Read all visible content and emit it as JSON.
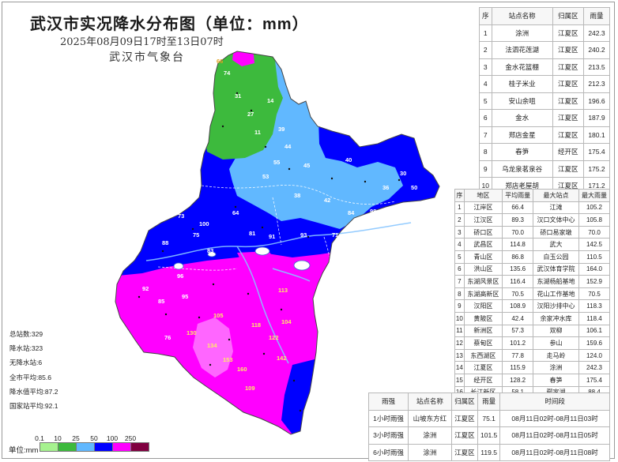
{
  "title": "武汉市实况降水分布图（单位：mm）",
  "subtitle": "2025年08月09日17时至13日07时",
  "agency": "武汉市气象台",
  "colors": {
    "c0_1": "#a6f28f",
    "c10": "#3dba3d",
    "c25": "#61b8ff",
    "c50": "#0000ff",
    "c100": "#ff00ff",
    "c250": "#800040"
  },
  "top_table": {
    "headers": [
      "序",
      "站点名称",
      "归属区",
      "雨量"
    ],
    "rows": [
      [
        "1",
        "涂洲",
        "江夏区",
        "242.3"
      ],
      [
        "2",
        "法泗花莲湖",
        "江夏区",
        "240.2"
      ],
      [
        "3",
        "金水花篮棚",
        "江夏区",
        "213.5"
      ],
      [
        "4",
        "桂子米业",
        "江夏区",
        "212.3"
      ],
      [
        "5",
        "安山余咀",
        "江夏区",
        "196.6"
      ],
      [
        "6",
        "金水",
        "江夏区",
        "187.9"
      ],
      [
        "7",
        "郑店金星",
        "江夏区",
        "180.1"
      ],
      [
        "8",
        "春笋",
        "经开区",
        "175.4"
      ],
      [
        "9",
        "乌龙泉茗泉谷",
        "江夏区",
        "175.2"
      ],
      [
        "10",
        "郑店老屋胡",
        "江夏区",
        "171.2"
      ]
    ]
  },
  "district_table": {
    "headers": [
      "序",
      "地区",
      "平均雨量",
      "最大站点",
      "最大雨量"
    ],
    "rows": [
      [
        "1",
        "江岸区",
        "66.4",
        "江滩",
        "105.2"
      ],
      [
        "2",
        "江汉区",
        "89.3",
        "汉口文体中心",
        "105.8"
      ],
      [
        "3",
        "硚口区",
        "70.0",
        "硚口易家墩",
        "70.0"
      ],
      [
        "4",
        "武昌区",
        "114.8",
        "武大",
        "142.5"
      ],
      [
        "5",
        "青山区",
        "86.8",
        "白玉公园",
        "110.5"
      ],
      [
        "6",
        "洪山区",
        "135.6",
        "武汉体育学院",
        "164.0"
      ],
      [
        "7",
        "东湖风景区",
        "116.4",
        "东湖杨船基地",
        "152.9"
      ],
      [
        "8",
        "东湖高新区",
        "70.5",
        "花山工作基地",
        "70.5"
      ],
      [
        "9",
        "汉阳区",
        "108.9",
        "汉阳沙排中心",
        "118.3"
      ],
      [
        "10",
        "黄陂区",
        "42.4",
        "余家冲水库",
        "118.4"
      ],
      [
        "11",
        "新洲区",
        "57.3",
        "双柳",
        "106.1"
      ],
      [
        "12",
        "蔡甸区",
        "101.2",
        "参山",
        "159.6"
      ],
      [
        "13",
        "东西湖区",
        "77.8",
        "走马岭",
        "124.0"
      ],
      [
        "14",
        "江夏区",
        "115.9",
        "涂洲",
        "242.3"
      ],
      [
        "15",
        "经开区",
        "128.2",
        "春笋",
        "175.4"
      ],
      [
        "16",
        "长江新区",
        "58.1",
        "鄢家湖",
        "88.4"
      ]
    ]
  },
  "hourly_table": {
    "headers": [
      "雨强",
      "站点名称",
      "归属区",
      "雨量",
      "时间段"
    ],
    "rows": [
      [
        "1小时雨强",
        "山坡东方红",
        "江夏区",
        "75.1",
        "08月11日02时-08月11日03时"
      ],
      [
        "3小时雨强",
        "涂洲",
        "江夏区",
        "101.5",
        "08月11日02时-08月11日05时"
      ],
      [
        "6小时雨强",
        "涂洲",
        "江夏区",
        "119.5",
        "08月11日02时-08月11日08时"
      ]
    ]
  },
  "stats": [
    {
      "label": "总站数",
      "value": "329"
    },
    {
      "label": "降水站",
      "value": "323"
    },
    {
      "label": "无降水站",
      "value": "6"
    },
    {
      "label": "全市平均",
      "value": "85.6"
    },
    {
      "label": "降水值平均",
      "value": "87.2"
    },
    {
      "label": "国家站平均",
      "value": "92.1"
    }
  ],
  "legend": {
    "unit": "单位:mm",
    "ticks": [
      "0.1",
      "10",
      "25",
      "50",
      "100",
      "250"
    ]
  },
  "map_numbers": [
    {
      "v": "66",
      "c": "#e0a020"
    },
    {
      "v": "74",
      "c": "#ffffff"
    },
    {
      "v": "31",
      "c": "#ffffff"
    },
    {
      "v": "27",
      "c": "#ffffff"
    },
    {
      "v": "14",
      "c": "#ffffff"
    },
    {
      "v": "11",
      "c": "#ffffff"
    },
    {
      "v": "39",
      "c": "#ffffff"
    },
    {
      "v": "44",
      "c": "#ffffff"
    },
    {
      "v": "45",
      "c": "#ffffff"
    },
    {
      "v": "40",
      "c": "#ffffff"
    },
    {
      "v": "42",
      "c": "#ffffff"
    },
    {
      "v": "38",
      "c": "#ffffff"
    },
    {
      "v": "53",
      "c": "#ffffff"
    },
    {
      "v": "55",
      "c": "#ffffff"
    },
    {
      "v": "64",
      "c": "#ffffff"
    },
    {
      "v": "73",
      "c": "#ffffff"
    },
    {
      "v": "75",
      "c": "#ffffff"
    },
    {
      "v": "83",
      "c": "#ffffff"
    },
    {
      "v": "88",
      "c": "#ffffff"
    },
    {
      "v": "96",
      "c": "#ffffff"
    },
    {
      "v": "100",
      "c": "#ffffff"
    },
    {
      "v": "81",
      "c": "#ffffff"
    },
    {
      "v": "91",
      "c": "#ffffff"
    },
    {
      "v": "71",
      "c": "#ffffff"
    },
    {
      "v": "92",
      "c": "#ffffff"
    },
    {
      "v": "105",
      "c": "#ffee66"
    },
    {
      "v": "118",
      "c": "#ffee66"
    },
    {
      "v": "122",
      "c": "#ffee66"
    },
    {
      "v": "134",
      "c": "#ffee66"
    },
    {
      "v": "153",
      "c": "#ffee66"
    },
    {
      "v": "160",
      "c": "#ffee66"
    },
    {
      "v": "142",
      "c": "#ffee66"
    },
    {
      "v": "109",
      "c": "#ffee66"
    },
    {
      "v": "85",
      "c": "#ffffff"
    },
    {
      "v": "95",
      "c": "#ffffff"
    },
    {
      "v": "84",
      "c": "#ffffff"
    },
    {
      "v": "93",
      "c": "#ffffff"
    },
    {
      "v": "98",
      "c": "#ffffff"
    },
    {
      "v": "113",
      "c": "#ffee66"
    },
    {
      "v": "130",
      "c": "#ffee66"
    },
    {
      "v": "104",
      "c": "#ffee66"
    },
    {
      "v": "76",
      "c": "#ffffff"
    },
    {
      "v": "50",
      "c": "#ffffff"
    },
    {
      "v": "36",
      "c": "#ffffff"
    },
    {
      "v": "30",
      "c": "#ffffff"
    }
  ]
}
